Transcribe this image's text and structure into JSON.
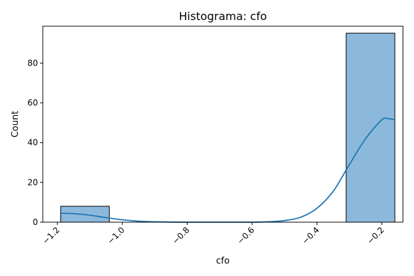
{
  "chart_data": {
    "type": "bar",
    "title": "Histograma: cfo",
    "xlabel": "cfo",
    "ylabel": "Count",
    "xlim": [
      -1.245,
      -0.135
    ],
    "ylim": [
      0,
      98.5
    ],
    "x_ticks": [
      -1.2,
      -1.0,
      -0.8,
      -0.6,
      -0.4,
      -0.2
    ],
    "x_tick_labels": [
      "−1.2",
      "−1.0",
      "−0.8",
      "−0.6",
      "−0.4",
      "−0.2"
    ],
    "y_ticks": [
      0,
      20,
      40,
      60,
      80
    ],
    "y_tick_labels": [
      "0",
      "20",
      "40",
      "60",
      "80"
    ],
    "bins": [
      {
        "x0": -1.19,
        "x1": -1.04,
        "count": 8
      },
      {
        "x0": -0.31,
        "x1": -0.16,
        "count": 95
      }
    ],
    "kde": {
      "x": [
        -1.19,
        -1.15,
        -1.1,
        -1.05,
        -1.0,
        -0.95,
        -0.9,
        -0.85,
        -0.8,
        -0.7,
        -0.6,
        -0.55,
        -0.5,
        -0.45,
        -0.4,
        -0.35,
        -0.3,
        -0.25,
        -0.2,
        -0.18,
        -0.16
      ],
      "y": [
        4.5,
        4.3,
        3.5,
        2.3,
        1.2,
        0.5,
        0.2,
        0.05,
        0.0,
        0.0,
        0.0,
        0.2,
        0.8,
        2.5,
        7.0,
        15.5,
        29.0,
        42.0,
        51.5,
        52.0,
        51.5
      ]
    },
    "colors": {
      "bar_fill": "#8cb9db",
      "bar_edge": "#000000",
      "kde_line": "#1f77b4"
    },
    "grid": false,
    "legend": "none"
  }
}
